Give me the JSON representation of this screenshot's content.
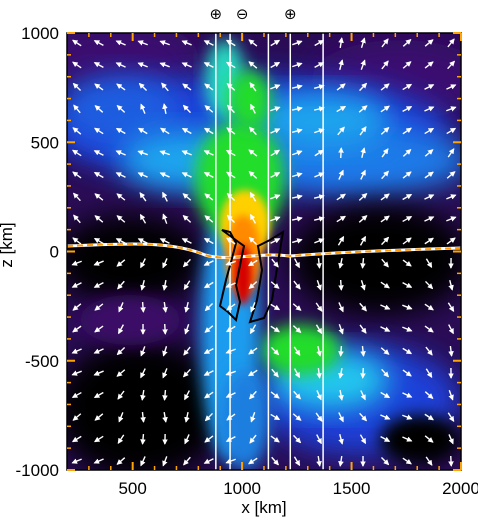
{
  "chart_data": {
    "type": "heatmap",
    "title": "",
    "xlabel": "x [km]",
    "ylabel": "z [km]",
    "xlim": [
      200,
      2000
    ],
    "ylim": [
      -1000,
      1000
    ],
    "x_ticks": [
      500,
      1000,
      1500,
      2000
    ],
    "x_tick_labels": [
      "500",
      "1000",
      "1500",
      "2000"
    ],
    "y_ticks": [
      1000,
      500,
      0,
      -500,
      -1000
    ],
    "y_tick_labels": [
      "1000",
      "500",
      "0",
      "-500",
      "-1000"
    ],
    "top_annotations": [
      {
        "x": 880,
        "symbol": "⊕"
      },
      {
        "x": 1000,
        "symbol": "⊖"
      },
      {
        "x": 1220,
        "symbol": "⊕"
      }
    ],
    "neutral_line": "orange dashed contour near z = 0",
    "field_lines_x": [
      880,
      945,
      1120,
      1220,
      1370
    ],
    "vector_field": "white arrows showing flow velocity",
    "colormap": [
      "#000000",
      "#3a0f66",
      "#1e3fd8",
      "#1aa8ee",
      "#22e0ff",
      "#20dd2a",
      "#ffd000",
      "#ff8a00",
      "#d40000"
    ],
    "grid": false,
    "legend": "none"
  }
}
